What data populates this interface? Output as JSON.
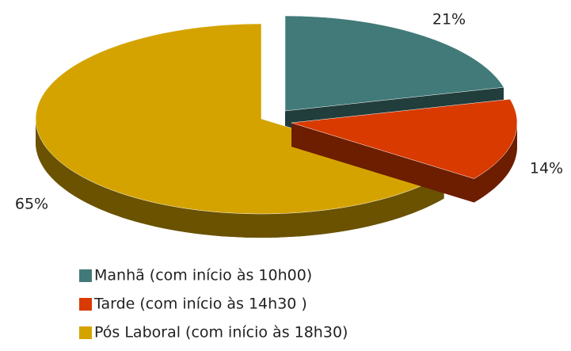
{
  "chart_data": {
    "type": "pie",
    "categories": [
      "Manhã (com início às 10h00)",
      "Tarde (com início às 14h30 )",
      "Pós Laboral (com início às 18h30)"
    ],
    "values": [
      21,
      14,
      65
    ],
    "value_labels": [
      "21%",
      "14%",
      "65%"
    ],
    "colors": [
      "#417a78",
      "#d93a00",
      "#d4a300"
    ],
    "legend": "bottom"
  }
}
